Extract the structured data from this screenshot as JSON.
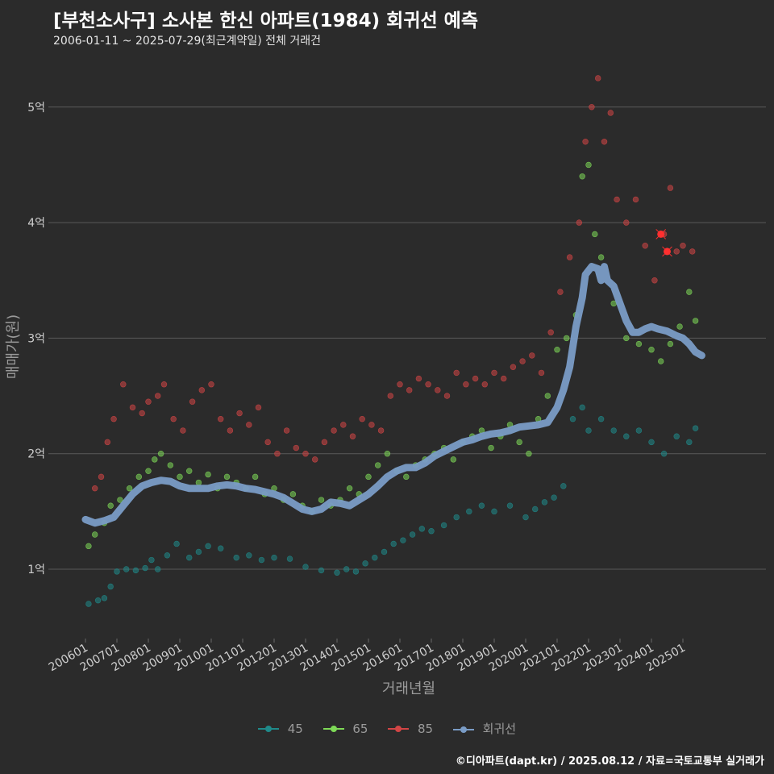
{
  "header": {
    "title": "[부천소사구] 소사본 한신 아파트(1984) 회귀선 예측",
    "subtitle": "2006-01-11 ~ 2025-07-29(최근계약일) 전체 거래건"
  },
  "caption": "©디아파트(dapt.kr) / 2025.08.12 / 자료=국토교통부 실거래가",
  "chart_data": {
    "type": "scatter",
    "title": "[부천소사구] 소사본 한신 아파트(1984) 회귀선 예측",
    "xlabel": "거래년월",
    "ylabel": "매매가(원)",
    "x_range": [
      2006.0,
      2025.7
    ],
    "ylim": [
      0.5,
      5.5
    ],
    "y_ticks": [
      1,
      2,
      3,
      4,
      5
    ],
    "y_tick_labels": [
      "1억",
      "2억",
      "3억",
      "4억",
      "5억"
    ],
    "x_ticks": [
      2006.0,
      2007.0,
      2008.0,
      2009.0,
      2010.0,
      2011.0,
      2012.0,
      2013.0,
      2014.0,
      2015.0,
      2016.0,
      2017.0,
      2018.0,
      2019.0,
      2020.0,
      2021.0,
      2022.0,
      2023.0,
      2024.0,
      2025.0
    ],
    "x_tick_labels": [
      "200601",
      "200701",
      "200801",
      "200901",
      "201001",
      "201101",
      "201201",
      "201301",
      "201401",
      "201501",
      "201601",
      "201701",
      "201801",
      "201901",
      "202001",
      "202101",
      "202201",
      "202301",
      "202401",
      "202501"
    ],
    "grid": "horizontal",
    "legend_position": "bottom",
    "series": [
      {
        "name": "45",
        "color": "#1f8a8a",
        "values": [
          [
            2006.1,
            0.7
          ],
          [
            2006.4,
            0.73
          ],
          [
            2006.6,
            0.75
          ],
          [
            2006.8,
            0.85
          ],
          [
            2007.0,
            0.98
          ],
          [
            2007.3,
            1.0
          ],
          [
            2007.6,
            0.99
          ],
          [
            2007.9,
            1.01
          ],
          [
            2008.1,
            1.08
          ],
          [
            2008.3,
            1.0
          ],
          [
            2008.6,
            1.12
          ],
          [
            2008.9,
            1.22
          ],
          [
            2009.3,
            1.1
          ],
          [
            2009.6,
            1.15
          ],
          [
            2009.9,
            1.2
          ],
          [
            2010.3,
            1.18
          ],
          [
            2010.8,
            1.1
          ],
          [
            2011.2,
            1.12
          ],
          [
            2011.6,
            1.08
          ],
          [
            2012.0,
            1.1
          ],
          [
            2012.5,
            1.09
          ],
          [
            2013.0,
            1.02
          ],
          [
            2013.5,
            0.99
          ],
          [
            2014.0,
            0.97
          ],
          [
            2014.3,
            1.0
          ],
          [
            2014.6,
            0.98
          ],
          [
            2014.9,
            1.05
          ],
          [
            2015.2,
            1.1
          ],
          [
            2015.5,
            1.15
          ],
          [
            2015.8,
            1.22
          ],
          [
            2016.1,
            1.25
          ],
          [
            2016.4,
            1.3
          ],
          [
            2016.7,
            1.35
          ],
          [
            2017.0,
            1.33
          ],
          [
            2017.4,
            1.38
          ],
          [
            2017.8,
            1.45
          ],
          [
            2018.2,
            1.5
          ],
          [
            2018.6,
            1.55
          ],
          [
            2019.0,
            1.5
          ],
          [
            2019.5,
            1.55
          ],
          [
            2020.0,
            1.45
          ],
          [
            2020.3,
            1.52
          ],
          [
            2020.6,
            1.58
          ],
          [
            2020.9,
            1.62
          ],
          [
            2021.2,
            1.72
          ],
          [
            2021.5,
            2.3
          ],
          [
            2021.8,
            2.4
          ],
          [
            2022.0,
            2.2
          ],
          [
            2022.4,
            2.3
          ],
          [
            2022.8,
            2.2
          ],
          [
            2023.2,
            2.15
          ],
          [
            2023.6,
            2.2
          ],
          [
            2024.0,
            2.1
          ],
          [
            2024.4,
            2.0
          ],
          [
            2024.8,
            2.15
          ],
          [
            2025.2,
            2.1
          ],
          [
            2025.4,
            2.22
          ]
        ]
      },
      {
        "name": "65",
        "color": "#7ed957",
        "values": [
          [
            2006.1,
            1.2
          ],
          [
            2006.3,
            1.3
          ],
          [
            2006.6,
            1.4
          ],
          [
            2006.8,
            1.55
          ],
          [
            2007.1,
            1.6
          ],
          [
            2007.4,
            1.7
          ],
          [
            2007.7,
            1.8
          ],
          [
            2008.0,
            1.85
          ],
          [
            2008.2,
            1.95
          ],
          [
            2008.4,
            2.0
          ],
          [
            2008.7,
            1.9
          ],
          [
            2009.0,
            1.8
          ],
          [
            2009.3,
            1.85
          ],
          [
            2009.6,
            1.75
          ],
          [
            2009.9,
            1.82
          ],
          [
            2010.2,
            1.7
          ],
          [
            2010.5,
            1.8
          ],
          [
            2010.8,
            1.75
          ],
          [
            2011.1,
            1.7
          ],
          [
            2011.4,
            1.8
          ],
          [
            2011.7,
            1.65
          ],
          [
            2012.0,
            1.7
          ],
          [
            2012.3,
            1.6
          ],
          [
            2012.6,
            1.65
          ],
          [
            2012.9,
            1.55
          ],
          [
            2013.2,
            1.5
          ],
          [
            2013.5,
            1.6
          ],
          [
            2013.8,
            1.55
          ],
          [
            2014.1,
            1.6
          ],
          [
            2014.4,
            1.7
          ],
          [
            2014.7,
            1.65
          ],
          [
            2015.0,
            1.8
          ],
          [
            2015.3,
            1.9
          ],
          [
            2015.6,
            2.0
          ],
          [
            2015.9,
            1.85
          ],
          [
            2016.2,
            1.8
          ],
          [
            2016.5,
            1.9
          ],
          [
            2016.8,
            1.95
          ],
          [
            2017.1,
            2.0
          ],
          [
            2017.4,
            2.05
          ],
          [
            2017.7,
            1.95
          ],
          [
            2018.0,
            2.1
          ],
          [
            2018.3,
            2.15
          ],
          [
            2018.6,
            2.2
          ],
          [
            2018.9,
            2.05
          ],
          [
            2019.2,
            2.15
          ],
          [
            2019.5,
            2.25
          ],
          [
            2019.8,
            2.1
          ],
          [
            2020.1,
            2.0
          ],
          [
            2020.4,
            2.3
          ],
          [
            2020.7,
            2.5
          ],
          [
            2021.0,
            2.9
          ],
          [
            2021.3,
            3.0
          ],
          [
            2021.6,
            3.2
          ],
          [
            2021.8,
            4.4
          ],
          [
            2022.0,
            4.5
          ],
          [
            2022.2,
            3.9
          ],
          [
            2022.4,
            3.7
          ],
          [
            2022.8,
            3.3
          ],
          [
            2023.2,
            3.0
          ],
          [
            2023.6,
            2.95
          ],
          [
            2024.0,
            2.9
          ],
          [
            2024.3,
            2.8
          ],
          [
            2024.6,
            2.95
          ],
          [
            2024.9,
            3.1
          ],
          [
            2025.2,
            3.4
          ],
          [
            2025.4,
            3.15
          ]
        ]
      },
      {
        "name": "85",
        "color": "#d24545",
        "values": [
          [
            2006.3,
            1.7
          ],
          [
            2006.5,
            1.8
          ],
          [
            2006.7,
            2.1
          ],
          [
            2006.9,
            2.3
          ],
          [
            2007.2,
            2.6
          ],
          [
            2007.5,
            2.4
          ],
          [
            2007.8,
            2.35
          ],
          [
            2008.0,
            2.45
          ],
          [
            2008.3,
            2.5
          ],
          [
            2008.5,
            2.6
          ],
          [
            2008.8,
            2.3
          ],
          [
            2009.1,
            2.2
          ],
          [
            2009.4,
            2.45
          ],
          [
            2009.7,
            2.55
          ],
          [
            2010.0,
            2.6
          ],
          [
            2010.3,
            2.3
          ],
          [
            2010.6,
            2.2
          ],
          [
            2010.9,
            2.35
          ],
          [
            2011.2,
            2.25
          ],
          [
            2011.5,
            2.4
          ],
          [
            2011.8,
            2.1
          ],
          [
            2012.1,
            2.0
          ],
          [
            2012.4,
            2.2
          ],
          [
            2012.7,
            2.05
          ],
          [
            2013.0,
            2.0
          ],
          [
            2013.3,
            1.95
          ],
          [
            2013.6,
            2.1
          ],
          [
            2013.9,
            2.2
          ],
          [
            2014.2,
            2.25
          ],
          [
            2014.5,
            2.15
          ],
          [
            2014.8,
            2.3
          ],
          [
            2015.1,
            2.25
          ],
          [
            2015.4,
            2.2
          ],
          [
            2015.7,
            2.5
          ],
          [
            2016.0,
            2.6
          ],
          [
            2016.3,
            2.55
          ],
          [
            2016.6,
            2.65
          ],
          [
            2016.9,
            2.6
          ],
          [
            2017.2,
            2.55
          ],
          [
            2017.5,
            2.5
          ],
          [
            2017.8,
            2.7
          ],
          [
            2018.1,
            2.6
          ],
          [
            2018.4,
            2.65
          ],
          [
            2018.7,
            2.6
          ],
          [
            2019.0,
            2.7
          ],
          [
            2019.3,
            2.65
          ],
          [
            2019.6,
            2.75
          ],
          [
            2019.9,
            2.8
          ],
          [
            2020.2,
            2.85
          ],
          [
            2020.5,
            2.7
          ],
          [
            2020.8,
            3.05
          ],
          [
            2021.1,
            3.4
          ],
          [
            2021.4,
            3.7
          ],
          [
            2021.7,
            4.0
          ],
          [
            2021.9,
            4.7
          ],
          [
            2022.1,
            5.0
          ],
          [
            2022.3,
            5.25
          ],
          [
            2022.5,
            4.7
          ],
          [
            2022.7,
            4.95
          ],
          [
            2022.9,
            4.2
          ],
          [
            2023.2,
            4.0
          ],
          [
            2023.5,
            4.2
          ],
          [
            2023.8,
            3.8
          ],
          [
            2024.1,
            3.5
          ],
          [
            2024.4,
            3.9
          ],
          [
            2024.6,
            4.3
          ],
          [
            2024.8,
            3.75
          ],
          [
            2025.0,
            3.8
          ],
          [
            2025.3,
            3.75
          ]
        ]
      },
      {
        "name": "회귀선",
        "color": "#7a9cc6",
        "values": [
          [
            2006.0,
            1.43
          ],
          [
            2006.3,
            1.4
          ],
          [
            2006.6,
            1.42
          ],
          [
            2006.9,
            1.45
          ],
          [
            2007.2,
            1.55
          ],
          [
            2007.5,
            1.65
          ],
          [
            2007.8,
            1.72
          ],
          [
            2008.1,
            1.75
          ],
          [
            2008.4,
            1.77
          ],
          [
            2008.7,
            1.76
          ],
          [
            2009.0,
            1.72
          ],
          [
            2009.3,
            1.7
          ],
          [
            2009.6,
            1.7
          ],
          [
            2009.9,
            1.7
          ],
          [
            2010.2,
            1.72
          ],
          [
            2010.5,
            1.73
          ],
          [
            2010.8,
            1.72
          ],
          [
            2011.1,
            1.7
          ],
          [
            2011.4,
            1.69
          ],
          [
            2011.7,
            1.67
          ],
          [
            2012.0,
            1.65
          ],
          [
            2012.3,
            1.62
          ],
          [
            2012.6,
            1.57
          ],
          [
            2012.9,
            1.52
          ],
          [
            2013.2,
            1.5
          ],
          [
            2013.5,
            1.52
          ],
          [
            2013.8,
            1.58
          ],
          [
            2014.1,
            1.57
          ],
          [
            2014.4,
            1.55
          ],
          [
            2014.7,
            1.6
          ],
          [
            2015.0,
            1.65
          ],
          [
            2015.3,
            1.72
          ],
          [
            2015.6,
            1.8
          ],
          [
            2015.9,
            1.85
          ],
          [
            2016.2,
            1.88
          ],
          [
            2016.5,
            1.88
          ],
          [
            2016.8,
            1.92
          ],
          [
            2017.1,
            1.98
          ],
          [
            2017.4,
            2.02
          ],
          [
            2017.7,
            2.06
          ],
          [
            2018.0,
            2.1
          ],
          [
            2018.3,
            2.12
          ],
          [
            2018.6,
            2.15
          ],
          [
            2018.9,
            2.17
          ],
          [
            2019.2,
            2.18
          ],
          [
            2019.5,
            2.2
          ],
          [
            2019.8,
            2.23
          ],
          [
            2020.1,
            2.24
          ],
          [
            2020.4,
            2.25
          ],
          [
            2020.7,
            2.27
          ],
          [
            2021.0,
            2.4
          ],
          [
            2021.2,
            2.55
          ],
          [
            2021.4,
            2.75
          ],
          [
            2021.6,
            3.1
          ],
          [
            2021.8,
            3.35
          ],
          [
            2021.9,
            3.55
          ],
          [
            2022.1,
            3.62
          ],
          [
            2022.3,
            3.6
          ],
          [
            2022.4,
            3.5
          ],
          [
            2022.5,
            3.62
          ],
          [
            2022.6,
            3.5
          ],
          [
            2022.8,
            3.45
          ],
          [
            2023.0,
            3.3
          ],
          [
            2023.2,
            3.15
          ],
          [
            2023.4,
            3.05
          ],
          [
            2023.6,
            3.05
          ],
          [
            2023.8,
            3.08
          ],
          [
            2024.0,
            3.1
          ],
          [
            2024.2,
            3.08
          ],
          [
            2024.5,
            3.06
          ],
          [
            2024.8,
            3.02
          ],
          [
            2025.0,
            3.0
          ],
          [
            2025.2,
            2.95
          ],
          [
            2025.4,
            2.88
          ],
          [
            2025.6,
            2.85
          ]
        ]
      }
    ],
    "highlight_points": [
      [
        2024.3,
        3.9
      ],
      [
        2024.5,
        3.75
      ]
    ]
  }
}
